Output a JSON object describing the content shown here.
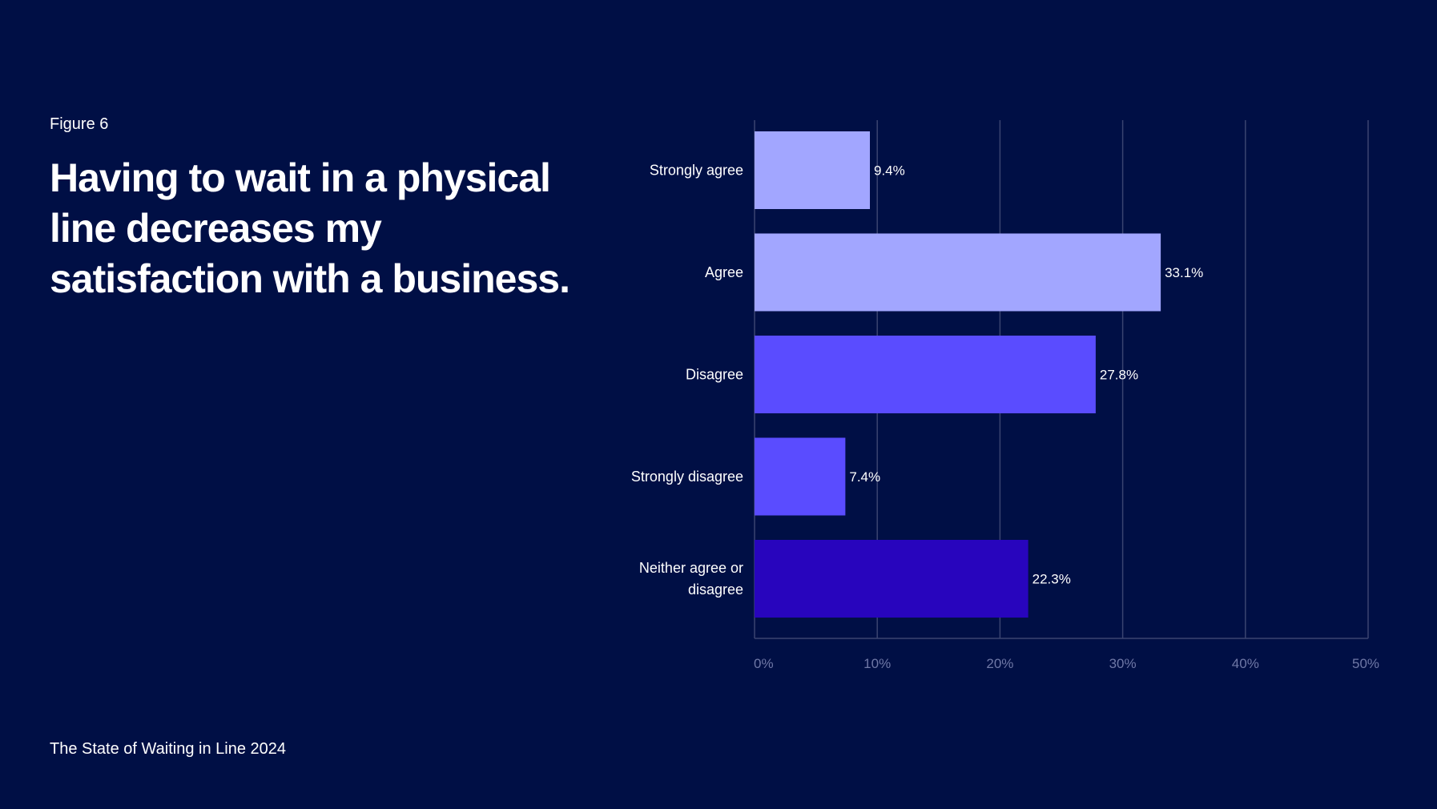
{
  "figure_label": "Figure 6",
  "headline": "Having to wait in a physical line decreases my satisfaction with a business.",
  "footer": "The State of Waiting in Line 2024",
  "colors": {
    "background": "#000f45",
    "grid": "#3a4470",
    "tick_text": "#6f78a6"
  },
  "chart_data": {
    "type": "bar",
    "orientation": "horizontal",
    "title": "Having to wait in a physical line decreases my satisfaction with a business.",
    "categories": [
      [
        "Strongly agree"
      ],
      [
        "Agree"
      ],
      [
        "Disagree"
      ],
      [
        "Strongly disagree"
      ],
      [
        "Neither agree or",
        "disagree"
      ]
    ],
    "values": [
      9.4,
      33.1,
      27.8,
      7.4,
      22.3
    ],
    "value_labels": [
      "9.4%",
      "33.1%",
      "27.8%",
      "7.4%",
      "22.3%"
    ],
    "bar_colors": [
      "#a2a6ff",
      "#a2a6ff",
      "#5a4cff",
      "#5a4cff",
      "#2805bd"
    ],
    "xlim": [
      0,
      50
    ],
    "xticks": [
      0,
      10,
      20,
      30,
      40,
      50
    ],
    "xtick_labels": [
      "0%",
      "10%",
      "20%",
      "30%",
      "40%",
      "50%"
    ],
    "grid": true,
    "xlabel": "",
    "ylabel": ""
  }
}
